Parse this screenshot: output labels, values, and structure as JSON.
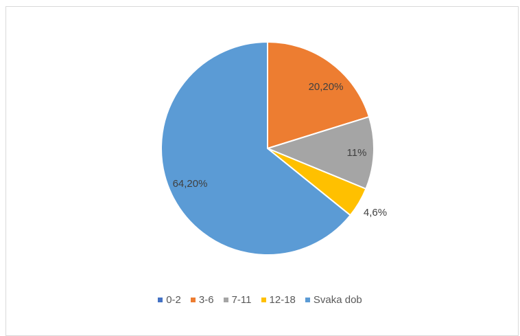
{
  "chart_data": {
    "type": "pie",
    "categories": [
      "0-2",
      "3-6",
      "7-11",
      "12-18",
      "Svaka dob"
    ],
    "values": [
      0,
      20.2,
      11,
      4.6,
      64.2
    ],
    "data_labels": [
      "",
      "20,20%",
      "11%",
      "4,6%",
      "64,20%"
    ],
    "colors": [
      "#4472c4",
      "#ed7d31",
      "#a5a5a5",
      "#ffc000",
      "#5b9bd5"
    ],
    "legend_position": "bottom"
  }
}
